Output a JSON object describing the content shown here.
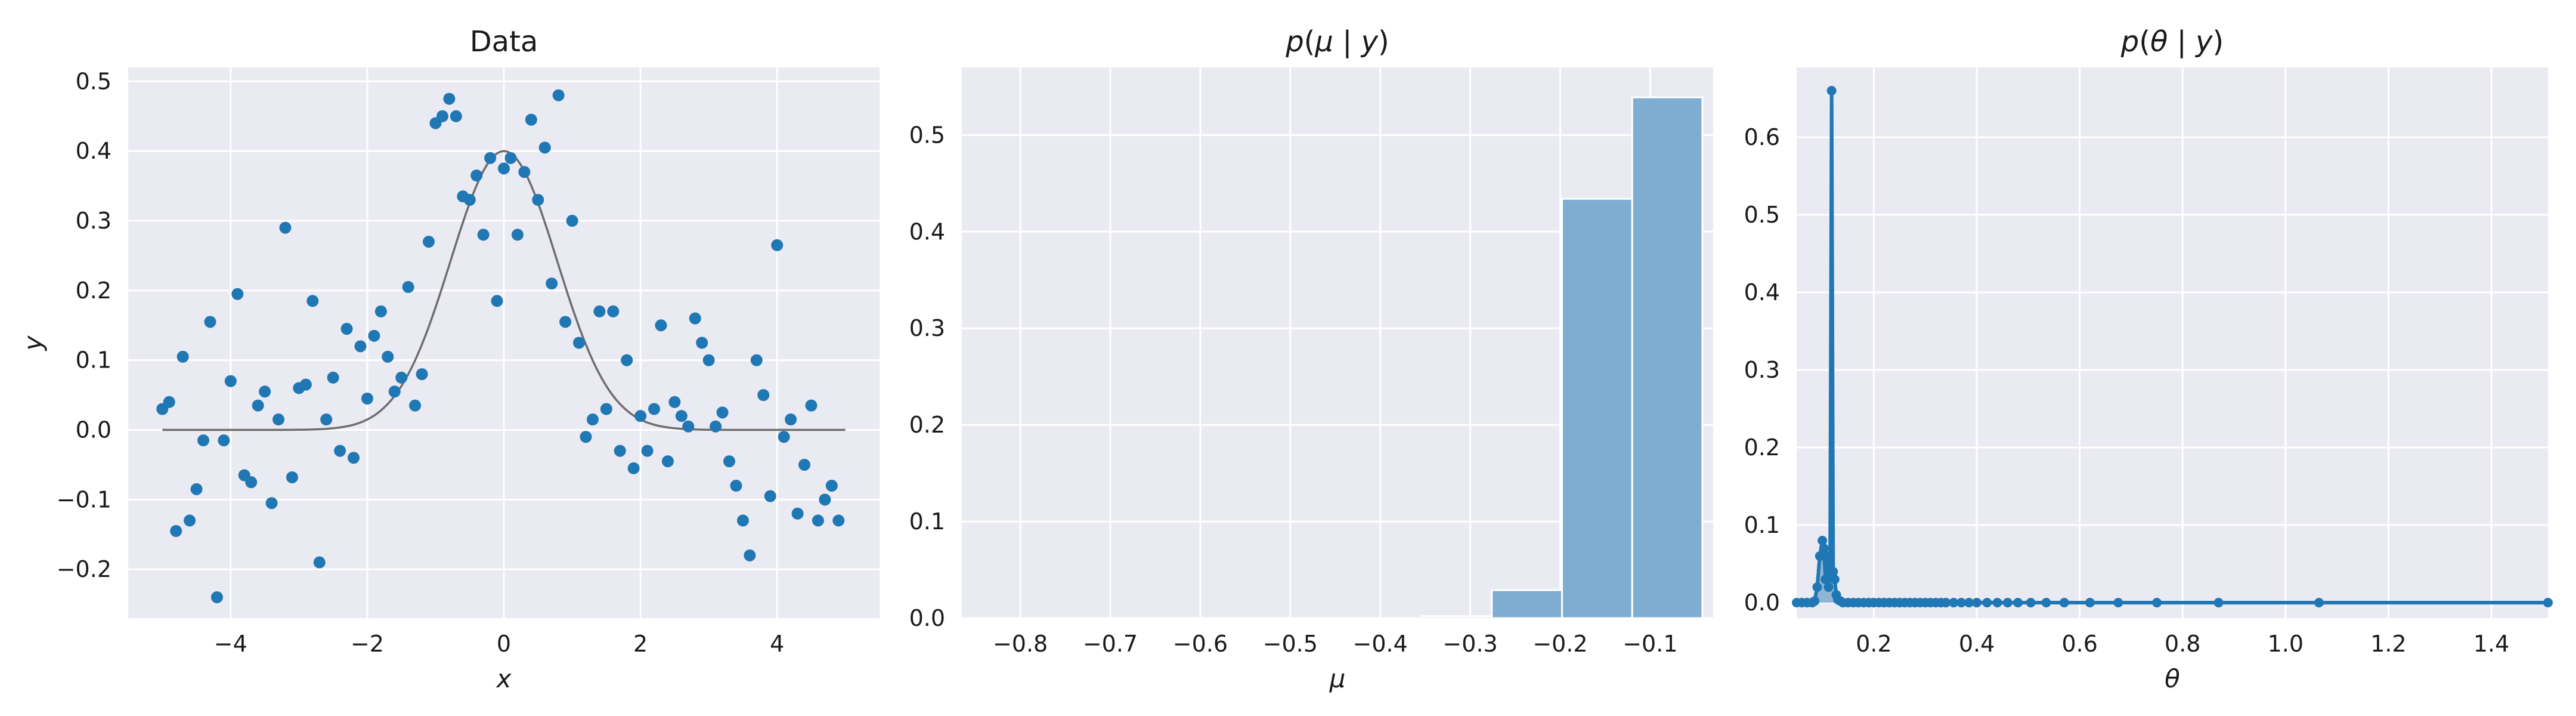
{
  "chart_data": [
    {
      "type": "scatter",
      "title": "Data",
      "xlabel": "x",
      "ylabel": "y",
      "xlim": [
        -5.5,
        5.5
      ],
      "ylim": [
        -0.27,
        0.52
      ],
      "xticks": [
        -4,
        -2,
        0,
        2,
        4
      ],
      "xtick_labels": [
        "−4",
        "−2",
        "0",
        "2",
        "4"
      ],
      "yticks": [
        -0.2,
        -0.1,
        0.0,
        0.1,
        0.2,
        0.3,
        0.4,
        0.5
      ],
      "ytick_labels": [
        "−0.2",
        "−0.1",
        "0.0",
        "0.1",
        "0.2",
        "0.3",
        "0.4",
        "0.5"
      ],
      "grid": true,
      "colors": {
        "points": "#1f77b4",
        "curve": "#6e6e6e",
        "background": "#eaeaf2",
        "grid": "#ffffff"
      },
      "curve": {
        "x_range": [
          -5,
          5
        ],
        "amplitude": 0.4,
        "center": 0,
        "sigma": 0.78
      },
      "points": [
        [
          -5.0,
          0.03
        ],
        [
          -4.9,
          0.04
        ],
        [
          -4.8,
          -0.145
        ],
        [
          -4.7,
          0.105
        ],
        [
          -4.6,
          -0.13
        ],
        [
          -4.5,
          -0.085
        ],
        [
          -4.4,
          -0.015
        ],
        [
          -4.3,
          0.155
        ],
        [
          -4.2,
          -0.24
        ],
        [
          -4.1,
          -0.015
        ],
        [
          -4.0,
          0.07
        ],
        [
          -3.9,
          0.195
        ],
        [
          -3.8,
          -0.065
        ],
        [
          -3.7,
          -0.075
        ],
        [
          -3.6,
          0.035
        ],
        [
          -3.5,
          0.055
        ],
        [
          -3.4,
          -0.105
        ],
        [
          -3.3,
          0.015
        ],
        [
          -3.2,
          0.29
        ],
        [
          -3.1,
          -0.068
        ],
        [
          -3.0,
          0.06
        ],
        [
          -2.9,
          0.065
        ],
        [
          -2.8,
          0.185
        ],
        [
          -2.7,
          -0.19
        ],
        [
          -2.6,
          0.015
        ],
        [
          -2.5,
          0.075
        ],
        [
          -2.4,
          -0.03
        ],
        [
          -2.3,
          0.145
        ],
        [
          -2.2,
          -0.04
        ],
        [
          -2.1,
          0.12
        ],
        [
          -2.0,
          0.045
        ],
        [
          -1.9,
          0.135
        ],
        [
          -1.8,
          0.17
        ],
        [
          -1.7,
          0.105
        ],
        [
          -1.6,
          0.055
        ],
        [
          -1.5,
          0.075
        ],
        [
          -1.4,
          0.205
        ],
        [
          -1.3,
          0.035
        ],
        [
          -1.2,
          0.08
        ],
        [
          -1.1,
          0.27
        ],
        [
          -1.0,
          0.44
        ],
        [
          -0.9,
          0.45
        ],
        [
          -0.8,
          0.475
        ],
        [
          -0.7,
          0.45
        ],
        [
          -0.6,
          0.335
        ],
        [
          -0.5,
          0.33
        ],
        [
          -0.4,
          0.365
        ],
        [
          -0.3,
          0.28
        ],
        [
          -0.2,
          0.39
        ],
        [
          -0.1,
          0.185
        ],
        [
          0.0,
          0.375
        ],
        [
          0.1,
          0.39
        ],
        [
          0.2,
          0.28
        ],
        [
          0.3,
          0.37
        ],
        [
          0.4,
          0.445
        ],
        [
          0.5,
          0.33
        ],
        [
          0.6,
          0.405
        ],
        [
          0.7,
          0.21
        ],
        [
          0.8,
          0.48
        ],
        [
          0.9,
          0.155
        ],
        [
          1.0,
          0.3
        ],
        [
          1.1,
          0.125
        ],
        [
          1.2,
          -0.01
        ],
        [
          1.3,
          0.015
        ],
        [
          1.4,
          0.17
        ],
        [
          1.5,
          0.03
        ],
        [
          1.6,
          0.17
        ],
        [
          1.7,
          -0.03
        ],
        [
          1.8,
          0.1
        ],
        [
          1.9,
          -0.055
        ],
        [
          2.0,
          0.02
        ],
        [
          2.1,
          -0.03
        ],
        [
          2.2,
          0.03
        ],
        [
          2.3,
          0.15
        ],
        [
          2.4,
          -0.045
        ],
        [
          2.5,
          0.04
        ],
        [
          2.6,
          0.02
        ],
        [
          2.7,
          0.005
        ],
        [
          2.8,
          0.16
        ],
        [
          2.9,
          0.125
        ],
        [
          3.0,
          0.1
        ],
        [
          3.1,
          0.005
        ],
        [
          3.2,
          0.025
        ],
        [
          3.3,
          -0.045
        ],
        [
          3.4,
          -0.08
        ],
        [
          3.5,
          -0.13
        ],
        [
          3.6,
          -0.18
        ],
        [
          3.7,
          0.1
        ],
        [
          3.8,
          0.05
        ],
        [
          3.9,
          -0.095
        ],
        [
          4.0,
          0.265
        ],
        [
          4.1,
          -0.01
        ],
        [
          4.2,
          0.015
        ],
        [
          4.3,
          -0.12
        ],
        [
          4.4,
          -0.05
        ],
        [
          4.5,
          0.035
        ],
        [
          4.6,
          -0.13
        ],
        [
          4.7,
          -0.1
        ],
        [
          4.8,
          -0.08
        ],
        [
          4.9,
          -0.13
        ]
      ]
    },
    {
      "type": "bar",
      "title": "p(μ | y)",
      "title_parts": {
        "letter": "p",
        "open": "(",
        "var": "μ",
        "bar": " | ",
        "cond": "y",
        "close": ")"
      },
      "xlabel": "μ",
      "ylabel": "",
      "xlim": [
        -0.865,
        -0.03
      ],
      "ylim": [
        0.0,
        0.57
      ],
      "xticks": [
        -0.8,
        -0.7,
        -0.6,
        -0.5,
        -0.4,
        -0.3,
        -0.2,
        -0.1
      ],
      "xtick_labels": [
        "−0.8",
        "−0.7",
        "−0.6",
        "−0.5",
        "−0.4",
        "−0.3",
        "−0.2",
        "−0.1"
      ],
      "yticks": [
        0.0,
        0.1,
        0.2,
        0.3,
        0.4,
        0.5
      ],
      "ytick_labels": [
        "0.0",
        "0.1",
        "0.2",
        "0.3",
        "0.4",
        "0.5"
      ],
      "grid": true,
      "colors": {
        "bars": "#7fadd1",
        "background": "#eaeaf2",
        "grid": "#ffffff"
      },
      "bins": [
        {
          "x0": -0.354,
          "x1": -0.276,
          "value": 0.002
        },
        {
          "x0": -0.276,
          "x1": -0.198,
          "value": 0.029
        },
        {
          "x0": -0.198,
          "x1": -0.12,
          "value": 0.434
        },
        {
          "x0": -0.12,
          "x1": -0.042,
          "value": 0.539
        }
      ]
    },
    {
      "type": "line",
      "title": "p(θ | y)",
      "title_parts": {
        "letter": "p",
        "open": "(",
        "var": "θ",
        "bar": " | ",
        "cond": "y",
        "close": ")"
      },
      "xlabel": "θ",
      "ylabel": "",
      "xlim": [
        0.05,
        1.51
      ],
      "ylim": [
        -0.02,
        0.69
      ],
      "xticks": [
        0.2,
        0.4,
        0.6,
        0.8,
        1.0,
        1.2,
        1.4
      ],
      "xtick_labels": [
        "0.2",
        "0.4",
        "0.6",
        "0.8",
        "1.0",
        "1.2",
        "1.4"
      ],
      "yticks": [
        0.0,
        0.1,
        0.2,
        0.3,
        0.4,
        0.5,
        0.6
      ],
      "ytick_labels": [
        "0.0",
        "0.1",
        "0.2",
        "0.3",
        "0.4",
        "0.5",
        "0.6"
      ],
      "grid": true,
      "colors": {
        "line": "#1f77b4",
        "fill": "#7fadd1",
        "background": "#eaeaf2",
        "grid": "#ffffff"
      },
      "x": [
        0.05,
        0.06,
        0.07,
        0.08,
        0.085,
        0.09,
        0.095,
        0.1,
        0.103,
        0.106,
        0.109,
        0.112,
        0.115,
        0.118,
        0.121,
        0.124,
        0.127,
        0.13,
        0.135,
        0.14,
        0.15,
        0.16,
        0.17,
        0.18,
        0.19,
        0.2,
        0.21,
        0.22,
        0.23,
        0.24,
        0.25,
        0.26,
        0.27,
        0.28,
        0.29,
        0.3,
        0.31,
        0.32,
        0.33,
        0.34,
        0.355,
        0.37,
        0.385,
        0.4,
        0.42,
        0.44,
        0.46,
        0.48,
        0.505,
        0.535,
        0.57,
        0.62,
        0.675,
        0.75,
        0.87,
        1.065,
        1.51
      ],
      "y": [
        0.0,
        0.0,
        0.0,
        0.0,
        0.002,
        0.02,
        0.06,
        0.08,
        0.07,
        0.03,
        0.06,
        0.02,
        0.05,
        0.66,
        0.04,
        0.03,
        0.01,
        0.004,
        0.002,
        0.0,
        0.0,
        0.0,
        0.0,
        0.0,
        0.0,
        0.0,
        0.0,
        0.0,
        0.0,
        0.0,
        0.0,
        0.0,
        0.0,
        0.0,
        0.0,
        0.0,
        0.0,
        0.0,
        0.0,
        0.0,
        0.0,
        0.0,
        0.0,
        0.0,
        0.0,
        0.0,
        0.0,
        0.0,
        0.0,
        0.0,
        0.0,
        0.0,
        0.0,
        0.0,
        0.0,
        0.0,
        0.0
      ]
    }
  ]
}
